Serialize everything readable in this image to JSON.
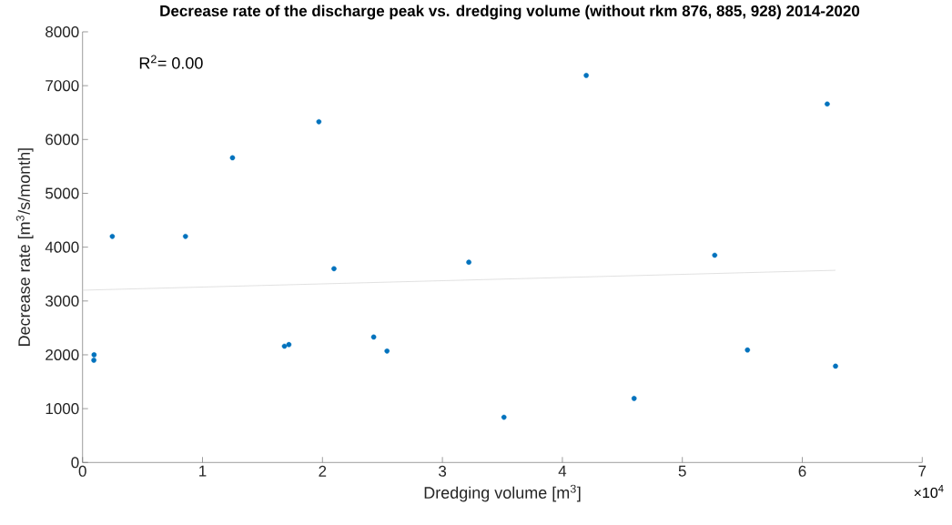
{
  "chart_data": {
    "type": "scatter",
    "title": "Decrease rate of the discharge peak vs. dredging volume (without rkm 876, 885, 928) 2014-2020",
    "xlabel": "Dredging volume [m$^{3}$]",
    "ylabel": "Decrease rate [m$^{3}$/s/month]",
    "annotations": [
      "R$^{2}$= 0.00",
      "×10$^{4}$"
    ],
    "xlim": [
      0,
      7
    ],
    "ylim": [
      0,
      8000
    ],
    "xticks": [
      0,
      1,
      2,
      3,
      4,
      5,
      6,
      7
    ],
    "yticks": [
      0,
      1000,
      2000,
      3000,
      4000,
      5000,
      6000,
      7000,
      8000
    ],
    "series": [
      {
        "color": "#0072bd",
        "marker": "circle",
        "x": [
          0.096,
          0.094,
          0.248,
          0.858,
          1.25,
          1.97,
          2.096,
          1.683,
          1.72,
          2.427,
          2.538,
          3.22,
          3.513,
          4.199,
          6.208,
          5.27,
          5.543,
          6.277,
          4.598
        ],
        "values": [
          2000,
          1900,
          4200,
          4200,
          5660,
          6330,
          3600,
          2160,
          2190,
          2330,
          2070,
          3720,
          840,
          7190,
          6660,
          3850,
          2090,
          1790,
          1190
        ]
      },
      {
        "type": "line",
        "color": "#d9d9d9",
        "x": [
          0,
          6.277
        ],
        "values": [
          3200,
          3570
        ]
      }
    ]
  }
}
